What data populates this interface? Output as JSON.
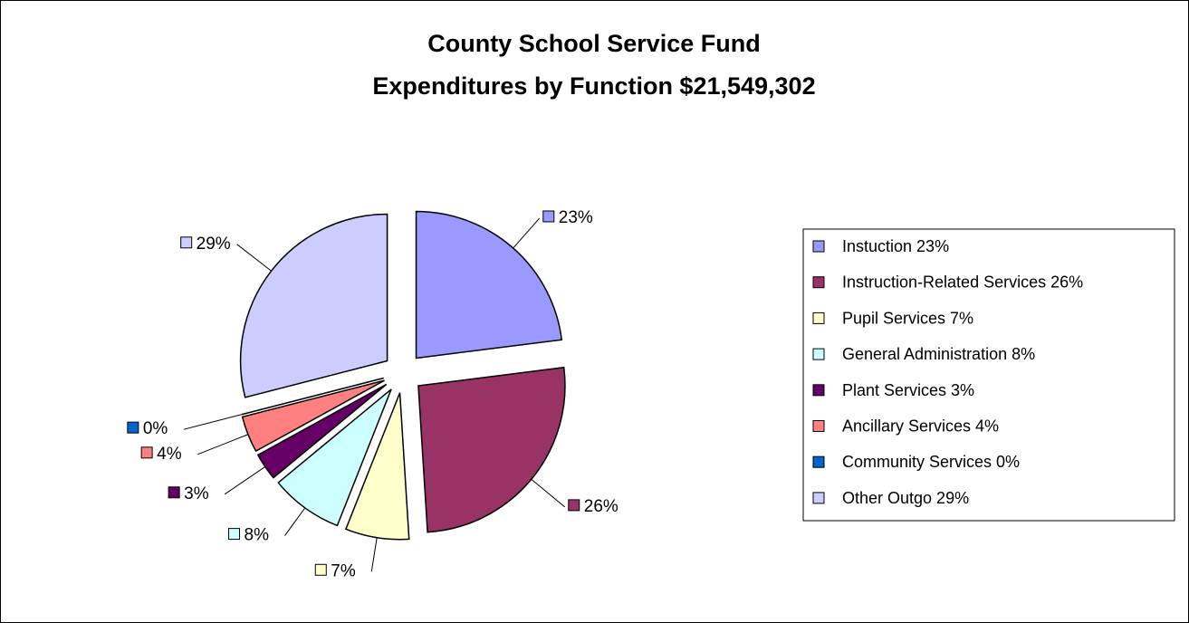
{
  "chart_data": {
    "type": "pie",
    "title": "County School Service Fund",
    "subtitle": "Expenditures by Function $21,549,302",
    "categories": [
      "Instuction",
      "Instruction-Related Services",
      "Pupil Services",
      "General Administration",
      "Plant Services",
      "Ancillary Services",
      "Community Services",
      "Other Outgo"
    ],
    "values": [
      23,
      26,
      7,
      8,
      3,
      4,
      0,
      29
    ],
    "value_unit": "%",
    "data_labels": [
      "23%",
      "26%",
      "7%",
      "8%",
      "3%",
      "4%",
      "0%",
      "29%"
    ],
    "legend_entries": [
      "Instuction 23%",
      "Instruction-Related Services 26%",
      "Pupil Services 7%",
      "General Administration 8%",
      "Plant Services 3%",
      "Ancillary Services 4%",
      "Community Services 0%",
      "Other Outgo 29%"
    ],
    "colors": [
      "#9999FF",
      "#993366",
      "#FFFFCC",
      "#CCFFFF",
      "#660066",
      "#FF8080",
      "#0066CC",
      "#CCCCFF"
    ],
    "exploded": true,
    "legend_position": "right"
  }
}
